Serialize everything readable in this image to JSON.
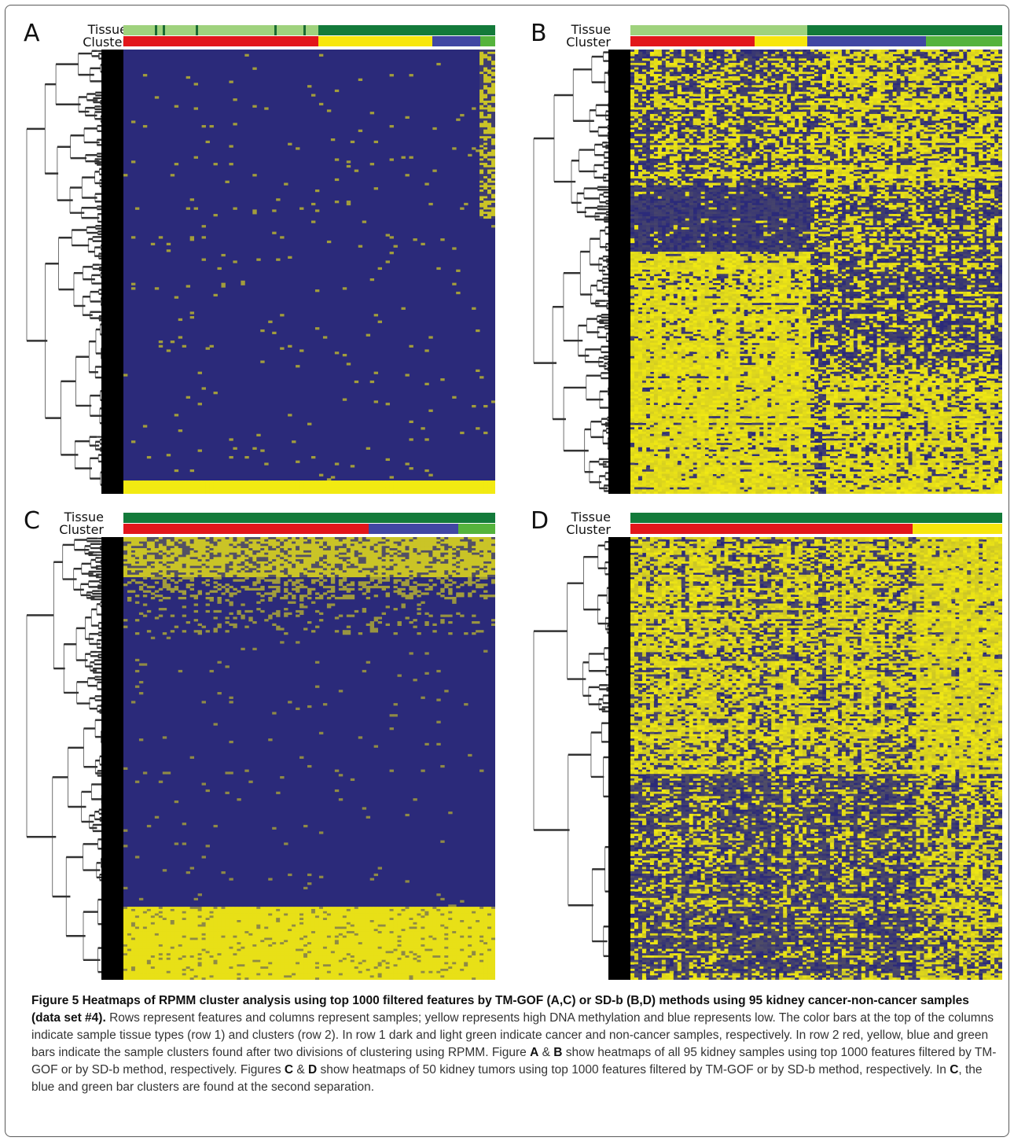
{
  "row_labels": {
    "tissue": "Tissue",
    "cluster": "Cluster"
  },
  "colors": {
    "non_cancer": "#9fd27d",
    "cancer": "#137a3a",
    "cluster_red": "#e2161b",
    "cluster_yellow": "#f7e60d",
    "cluster_blue": "#4147a3",
    "cluster_green": "#55b33c",
    "heat_low": "#2b2a7a",
    "heat_high": "#f2ea12"
  },
  "panels": [
    {
      "letter": "A",
      "tissue": [
        {
          "label": "non-cancer",
          "frac": 0.525
        },
        {
          "label": "cancer",
          "frac": 0.475
        }
      ],
      "tissue_ticks": [
        0.085,
        0.105,
        0.195,
        0.405,
        0.485
      ],
      "cluster": [
        {
          "label": "red",
          "frac": 0.525
        },
        {
          "label": "yellow",
          "frac": 0.305
        },
        {
          "label": "blue",
          "frac": 0.13
        },
        {
          "label": "green",
          "frac": 0.04
        }
      ]
    },
    {
      "letter": "B",
      "tissue": [
        {
          "label": "non-cancer",
          "frac": 0.475
        },
        {
          "label": "cancer",
          "frac": 0.525
        }
      ],
      "tissue_ticks": [],
      "cluster": [
        {
          "label": "red",
          "frac": 0.335
        },
        {
          "label": "yellow",
          "frac": 0.14
        },
        {
          "label": "blue",
          "frac": 0.32
        },
        {
          "label": "green",
          "frac": 0.205
        }
      ]
    },
    {
      "letter": "C",
      "tissue": [
        {
          "label": "cancer",
          "frac": 1.0
        }
      ],
      "tissue_ticks": [],
      "cluster": [
        {
          "label": "red",
          "frac": 0.66
        },
        {
          "label": "blue",
          "frac": 0.24
        },
        {
          "label": "green",
          "frac": 0.1
        }
      ]
    },
    {
      "letter": "D",
      "tissue": [
        {
          "label": "cancer",
          "frac": 1.0
        }
      ],
      "tissue_ticks": [],
      "cluster": [
        {
          "label": "red",
          "frac": 0.76
        },
        {
          "label": "yellow",
          "frac": 0.24
        }
      ]
    }
  ],
  "caption": {
    "figure_label": "Figure 5",
    "title": "Heatmaps of RPMM cluster analysis using top 1000 filtered features by TM-GOF (A,C) or SD-b (B,D) methods using 95 kidney cancer-non-cancer samples (data set #4).",
    "p1": "Rows represent features and columns represent samples; yellow represents high DNA methylation and blue represents low. The color bars at the top of the columns indicate sample tissue types (row 1) and clusters (row 2). In row 1 dark and light green indicate cancer and non-cancer samples, respectively. In row 2 red, yellow, blue and green bars indicate the sample clusters found after two divisions of clustering using RPMM. Figure ",
    "A": "A",
    "amp": " & ",
    "B": "B",
    "p2": " show heatmaps of all 95 kidney samples using top 1000 features filtered by TM-GOF or by SD-b method, respectively. Figures ",
    "C": "C",
    "amp2": " & ",
    "D": "D",
    "p3": " show heatmaps of 50 kidney tumors using top 1000 features filtered by TM-GOF or by SD-b method, respectively. In ",
    "C2": "C",
    "p4": ", the blue and green bar clusters are found at the second separation."
  }
}
